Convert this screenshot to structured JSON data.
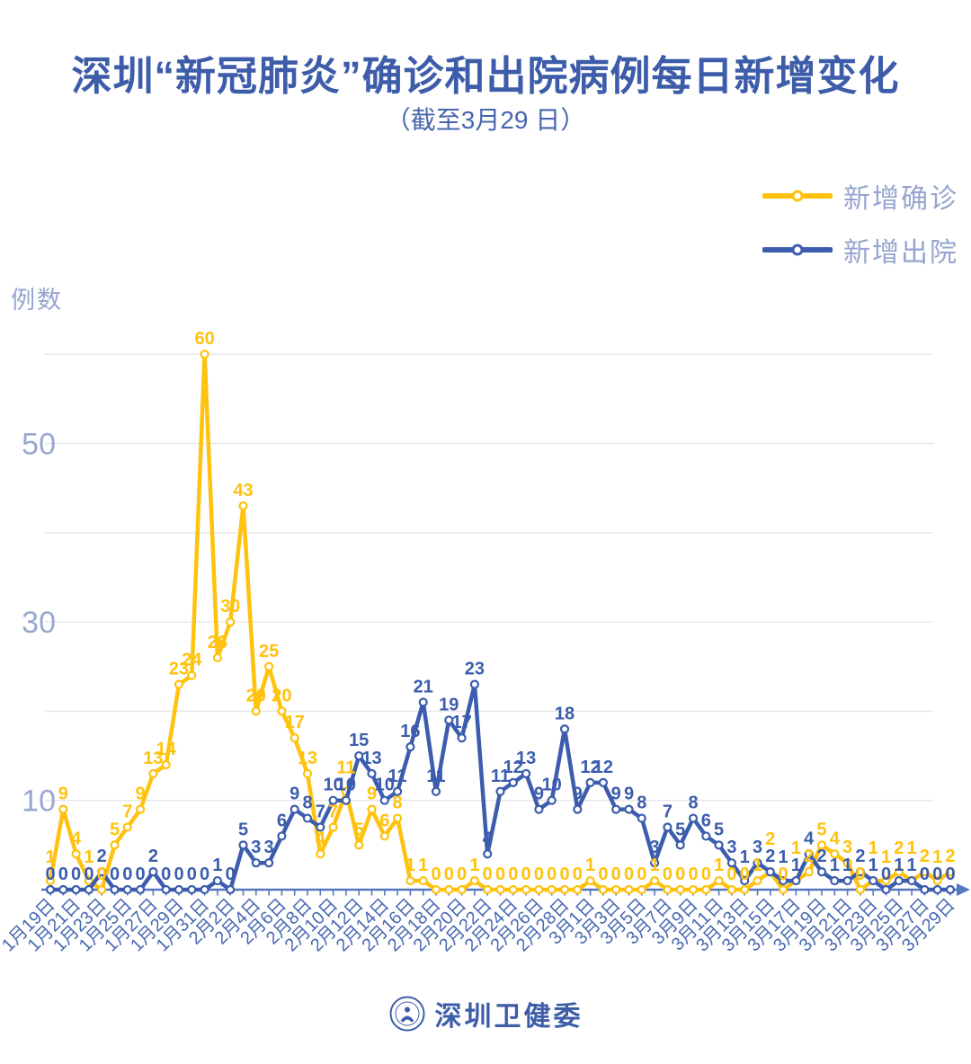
{
  "title": "深圳“新冠肺炎”确诊和出院病例每日新增变化",
  "subtitle": "（截至3月29 日）",
  "y_axis_title": "例数",
  "legend": [
    {
      "label": "新增确诊",
      "color": "#FFC20E"
    },
    {
      "label": "新增出院",
      "color": "#3C5DAD"
    }
  ],
  "footer": {
    "text": "深圳卫健委",
    "logo": "shenzhen-health-commission-emblem"
  },
  "colors": {
    "confirmed": "#FFC20E",
    "discharged": "#3C5DAD",
    "axis": "#5577C0",
    "date_label": "#4868B2",
    "y_tick_label": "#9AA8D1",
    "gridline": "#E7E7EB",
    "title": "#3D5CA9"
  },
  "chart_data": {
    "type": "line",
    "title": "深圳“新冠肺炎”确诊和出院病例每日新增变化",
    "subtitle": "（截至3月29 日）",
    "ylabel": "例数",
    "xlabel": "",
    "ylim": [
      0,
      62
    ],
    "yticks_labeled": [
      10,
      30,
      50
    ],
    "gridlines": [
      10,
      20,
      30,
      40,
      50,
      60
    ],
    "grid": true,
    "legend_position": "top-right",
    "marker": "circle-white-fill",
    "point_labels": true,
    "x_tick_label_every": 2,
    "x": [
      "1月19日",
      "1月20日",
      "1月21日",
      "1月22日",
      "1月23日",
      "1月24日",
      "1月25日",
      "1月26日",
      "1月27日",
      "1月28日",
      "1月29日",
      "1月30日",
      "1月31日",
      "2月1日",
      "2月2日",
      "2月3日",
      "2月4日",
      "2月5日",
      "2月6日",
      "2月7日",
      "2月8日",
      "2月9日",
      "2月10日",
      "2月11日",
      "2月12日",
      "2月13日",
      "2月14日",
      "2月15日",
      "2月16日",
      "2月17日",
      "2月18日",
      "2月19日",
      "2月20日",
      "2月21日",
      "2月22日",
      "2月23日",
      "2月24日",
      "2月25日",
      "2月26日",
      "2月27日",
      "2月28日",
      "2月29日",
      "3月1日",
      "3月2日",
      "3月3日",
      "3月4日",
      "3月5日",
      "3月6日",
      "3月7日",
      "3月8日",
      "3月9日",
      "3月10日",
      "3月11日",
      "3月12日",
      "3月13日",
      "3月14日",
      "3月15日",
      "3月16日",
      "3月17日",
      "3月18日",
      "3月19日",
      "3月20日",
      "3月21日",
      "3月22日",
      "3月23日",
      "3月24日",
      "3月25日",
      "3月26日",
      "3月27日",
      "3月28日",
      "3月29日"
    ],
    "series": [
      {
        "name": "新增确诊",
        "color": "#FFC20E",
        "values": [
          1,
          9,
          4,
          1,
          0,
          5,
          7,
          9,
          13,
          14,
          23,
          24,
          60,
          26,
          30,
          43,
          20,
          25,
          20,
          17,
          13,
          4,
          7,
          11,
          5,
          9,
          6,
          8,
          1,
          1,
          0,
          0,
          0,
          1,
          0,
          0,
          0,
          0,
          0,
          0,
          0,
          0,
          1,
          0,
          0,
          0,
          0,
          1,
          0,
          0,
          0,
          0,
          1,
          0,
          0,
          1,
          2,
          0,
          1,
          2,
          5,
          4,
          3,
          0,
          1,
          1,
          2,
          1,
          2,
          1,
          2
        ]
      },
      {
        "name": "新增出院",
        "color": "#3C5DAD",
        "values": [
          0,
          0,
          0,
          0,
          2,
          0,
          0,
          0,
          2,
          0,
          0,
          0,
          0,
          1,
          0,
          5,
          3,
          3,
          6,
          9,
          8,
          7,
          10,
          10,
          15,
          13,
          10,
          11,
          16,
          21,
          11,
          19,
          17,
          23,
          4,
          11,
          12,
          13,
          9,
          10,
          18,
          9,
          12,
          12,
          9,
          9,
          8,
          3,
          7,
          5,
          8,
          6,
          5,
          3,
          1,
          3,
          2,
          1,
          1,
          4,
          2,
          1,
          1,
          2,
          1,
          0,
          1,
          1,
          0,
          0,
          0
        ]
      }
    ]
  }
}
